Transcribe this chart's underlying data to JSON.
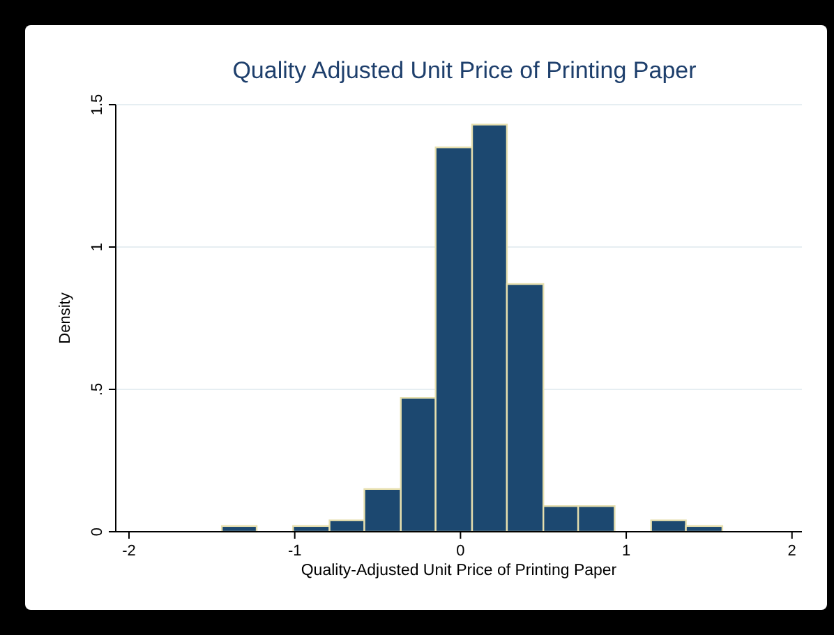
{
  "chart_data": {
    "type": "histogram",
    "title": "Quality Adjusted Unit Price of Printing Paper",
    "xlabel": "Quality-Adjusted Unit Price of Printing Paper",
    "ylabel": "Density",
    "bins": [
      -1.44,
      -1.23,
      -1.01,
      -0.79,
      -0.58,
      -0.36,
      -0.15,
      0.07,
      0.28,
      0.5,
      0.71,
      0.93,
      1.15,
      1.36,
      1.58
    ],
    "values": [
      0.02,
      0,
      0.02,
      0.04,
      0.15,
      0.47,
      1.35,
      1.43,
      0.87,
      0.09,
      0.09,
      0,
      0.04,
      0.02
    ],
    "color": "#1c4870",
    "xlim": [
      -2.08,
      2.06
    ],
    "xticks": [
      -2,
      -1,
      0,
      1,
      2
    ],
    "ylim": [
      0,
      1.5
    ],
    "yticks": [
      0,
      {
        "value": 0.5,
        "label": ".5"
      },
      1,
      1.5
    ],
    "grid": "y"
  }
}
